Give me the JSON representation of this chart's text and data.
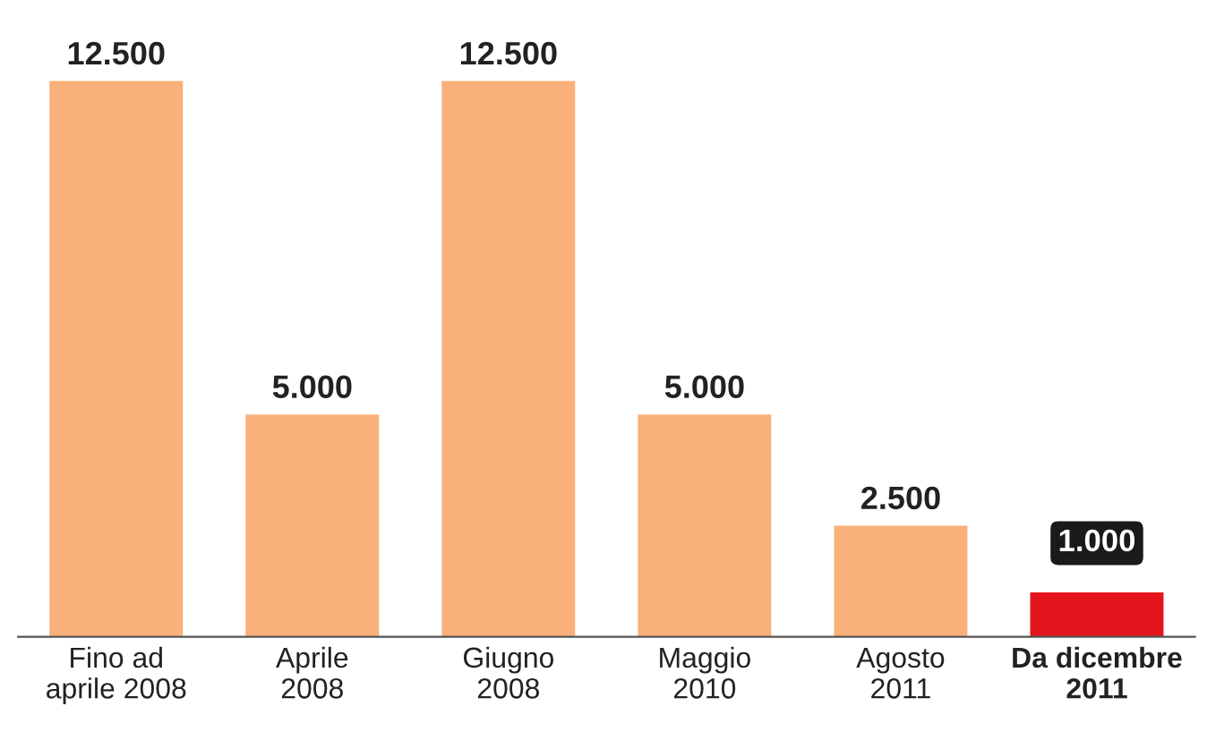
{
  "chart_data": {
    "type": "bar",
    "categories": [
      "Fino ad\naprile 2008",
      "Aprile\n2008",
      "Giugno\n2008",
      "Maggio\n2010",
      "Agosto\n2011",
      "Da dicembre\n2011"
    ],
    "values": [
      12500,
      5000,
      12500,
      5000,
      2500,
      1000
    ],
    "value_labels": [
      "12.500",
      "5.000",
      "12.500",
      "5.000",
      "2.500",
      "1.000"
    ],
    "colors": [
      "#f9b07a",
      "#f9b07a",
      "#f9b07a",
      "#f9b07a",
      "#f9b07a",
      "#e3141b"
    ]
  }
}
